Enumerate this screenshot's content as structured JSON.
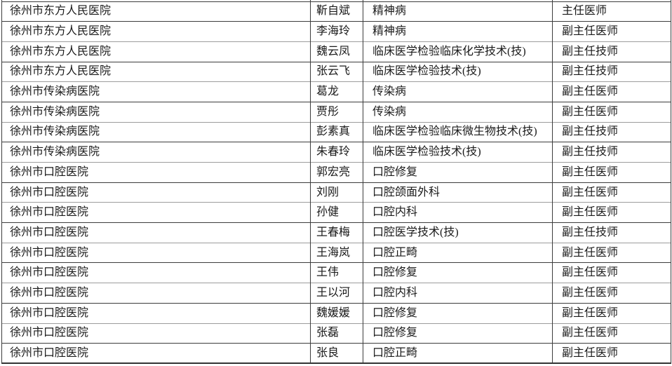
{
  "colors": {
    "background": "#ffffff",
    "text": "#1a1a1a",
    "border_dark": "#3c3c3c",
    "border_light": "#9c9c9c"
  },
  "table": {
    "rows": [
      {
        "hospital": "徐州市东方人民医院",
        "name": "靳自斌",
        "specialty": "精神病",
        "title": "主任医师"
      },
      {
        "hospital": "徐州市东方人民医院",
        "name": "李海玲",
        "specialty": "精神病",
        "title": "副主任医师"
      },
      {
        "hospital": "徐州市东方人民医院",
        "name": "魏云凤",
        "specialty": "临床医学检验临床化学技术(技)",
        "title": "副主任技师"
      },
      {
        "hospital": "徐州市东方人民医院",
        "name": "张云飞",
        "specialty": "临床医学检验技术(技)",
        "title": "副主任技师"
      },
      {
        "hospital": "徐州市传染病医院",
        "name": "葛龙",
        "specialty": "传染病",
        "title": "副主任医师"
      },
      {
        "hospital": "徐州市传染病医院",
        "name": "贾彤",
        "specialty": "传染病",
        "title": "副主任医师"
      },
      {
        "hospital": "徐州市传染病医院",
        "name": "彭素真",
        "specialty": "临床医学检验临床微生物技术(技)",
        "title": "副主任技师"
      },
      {
        "hospital": "徐州市传染病医院",
        "name": "朱春玲",
        "specialty": "临床医学检验技术(技)",
        "title": "副主任技师"
      },
      {
        "hospital": "徐州市口腔医院",
        "name": "郭宏亮",
        "specialty": "口腔修复",
        "title": "副主任医师"
      },
      {
        "hospital": "徐州市口腔医院",
        "name": "刘刚",
        "specialty": "口腔颌面外科",
        "title": "副主任医师"
      },
      {
        "hospital": "徐州市口腔医院",
        "name": "孙健",
        "specialty": "口腔内科",
        "title": "副主任医师"
      },
      {
        "hospital": "徐州市口腔医院",
        "name": "王春梅",
        "specialty": "口腔医学技术(技)",
        "title": "副主任技师"
      },
      {
        "hospital": "徐州市口腔医院",
        "name": "王海岚",
        "specialty": "口腔正畸",
        "title": "副主任医师"
      },
      {
        "hospital": "徐州市口腔医院",
        "name": "王伟",
        "specialty": "口腔修复",
        "title": "副主任医师"
      },
      {
        "hospital": "徐州市口腔医院",
        "name": "王以河",
        "specialty": "口腔内科",
        "title": "副主任医师"
      },
      {
        "hospital": "徐州市口腔医院",
        "name": "魏媛媛",
        "specialty": "口腔修复",
        "title": "副主任医师"
      },
      {
        "hospital": "徐州市口腔医院",
        "name": "张磊",
        "specialty": "口腔修复",
        "title": "副主任医师"
      },
      {
        "hospital": "徐州市口腔医院",
        "name": "张良",
        "specialty": "口腔正畸",
        "title": "副主任医师"
      }
    ]
  }
}
